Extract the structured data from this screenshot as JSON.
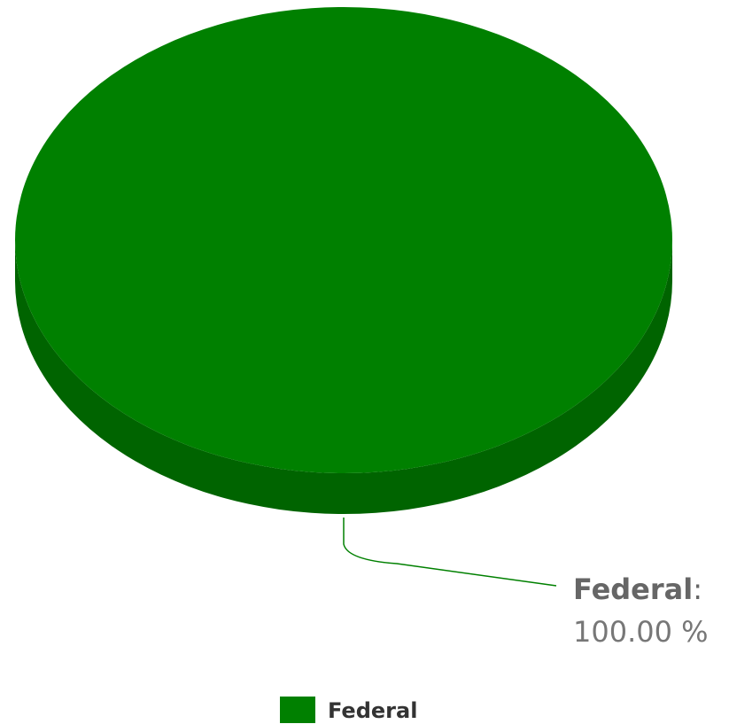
{
  "chart_data": {
    "type": "pie",
    "title": "",
    "slices": [
      {
        "label": "Federal",
        "value": 100.0,
        "display_value": "100.00 %",
        "color": "#008000",
        "side_color": "#006400"
      }
    ],
    "data_label_separator": ":",
    "legend": {
      "placement": "bottom",
      "items": [
        {
          "label": "Federal",
          "color": "#008000"
        }
      ]
    },
    "style": {
      "three_d": true,
      "connector_color": "#008000",
      "label_name_color": "#666666",
      "label_value_color": "#777777",
      "legend_text_color": "#333333"
    }
  }
}
